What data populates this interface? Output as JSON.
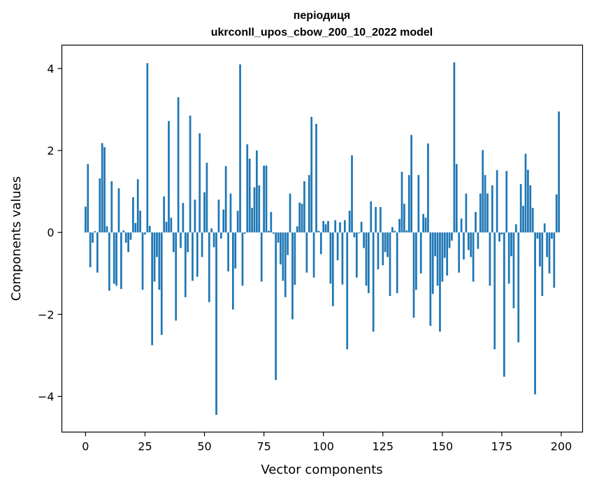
{
  "chart_data": {
    "type": "bar",
    "title": "періодиця",
    "subtitle": "ukrconll_upos_cbow_200_10_2022 model",
    "xlabel": "Vector components",
    "ylabel": "Components values",
    "xlim": [
      -9.95,
      208.95
    ],
    "ylim": [
      -4.87,
      4.57
    ],
    "xticks": [
      0,
      25,
      50,
      75,
      100,
      125,
      150,
      175,
      200
    ],
    "yticks": [
      -4,
      -2,
      0,
      2,
      4
    ],
    "ytick_labels": [
      "−4",
      "−2",
      "0",
      "2",
      "4"
    ],
    "grid": false,
    "bar_color": "#1f77b4",
    "values": [
      0.63,
      1.67,
      -0.85,
      -0.25,
      0.03,
      -0.98,
      1.32,
      2.18,
      2.08,
      0.15,
      -1.42,
      1.25,
      -1.25,
      -1.3,
      1.08,
      -1.38,
      0.05,
      -0.25,
      -0.48,
      -0.18,
      0.86,
      0.23,
      1.3,
      0.53,
      -1.4,
      -0.05,
      4.13,
      0.16,
      -2.75,
      -1.2,
      -0.6,
      -1.4,
      -2.5,
      0.88,
      0.26,
      2.72,
      0.36,
      -0.48,
      -2.15,
      3.3,
      -0.38,
      0.72,
      -1.58,
      -0.48,
      2.85,
      -1.18,
      0.8,
      -1.08,
      2.42,
      -0.6,
      0.98,
      1.7,
      -1.7,
      0.1,
      -0.36,
      -4.45,
      0.8,
      -0.15,
      0.56,
      1.62,
      -0.95,
      0.95,
      -1.88,
      -0.88,
      0.53,
      4.1,
      -1.3,
      -0.03,
      2.15,
      1.8,
      0.6,
      1.1,
      2.0,
      1.15,
      -1.2,
      1.63,
      1.63,
      0.04,
      0.5,
      -0.03,
      -3.6,
      -0.25,
      -0.78,
      -1.18,
      -1.58,
      -0.55,
      0.95,
      -2.12,
      -1.28,
      0.15,
      0.73,
      0.7,
      1.25,
      -0.98,
      1.4,
      2.82,
      -1.1,
      2.65,
      0.04,
      -0.53,
      0.28,
      0.2,
      0.28,
      -1.25,
      -1.8,
      0.3,
      -0.68,
      0.25,
      -1.27,
      0.3,
      -2.85,
      0.53,
      1.88,
      -0.12,
      -1.1,
      -0.02,
      0.26,
      -0.38,
      -1.3,
      -1.48,
      0.76,
      -2.42,
      0.62,
      -0.9,
      0.62,
      -0.8,
      -0.48,
      -0.6,
      -1.55,
      0.13,
      0.04,
      -1.48,
      0.33,
      1.48,
      0.7,
      0.05,
      1.4,
      2.38,
      -2.08,
      -1.4,
      1.4,
      -1.0,
      0.45,
      0.36,
      2.17,
      -2.28,
      -1.5,
      -0.58,
      -1.3,
      -2.42,
      -1.2,
      -0.62,
      -1.05,
      -0.38,
      -0.2,
      4.15,
      1.67,
      -0.98,
      0.34,
      -0.66,
      0.95,
      -0.43,
      -0.6,
      -1.2,
      0.5,
      -0.4,
      0.95,
      2.01,
      1.4,
      0.95,
      -1.3,
      1.15,
      -2.85,
      1.52,
      -0.22,
      -0.05,
      -3.52,
      1.5,
      -1.25,
      -0.58,
      -1.85,
      0.2,
      -2.68,
      1.18,
      0.65,
      1.92,
      1.53,
      1.15,
      0.6,
      -3.95,
      -0.15,
      -0.83,
      -1.55,
      0.22,
      -0.6,
      -1.0,
      -0.15,
      -1.35,
      0.93,
      2.95
    ]
  }
}
